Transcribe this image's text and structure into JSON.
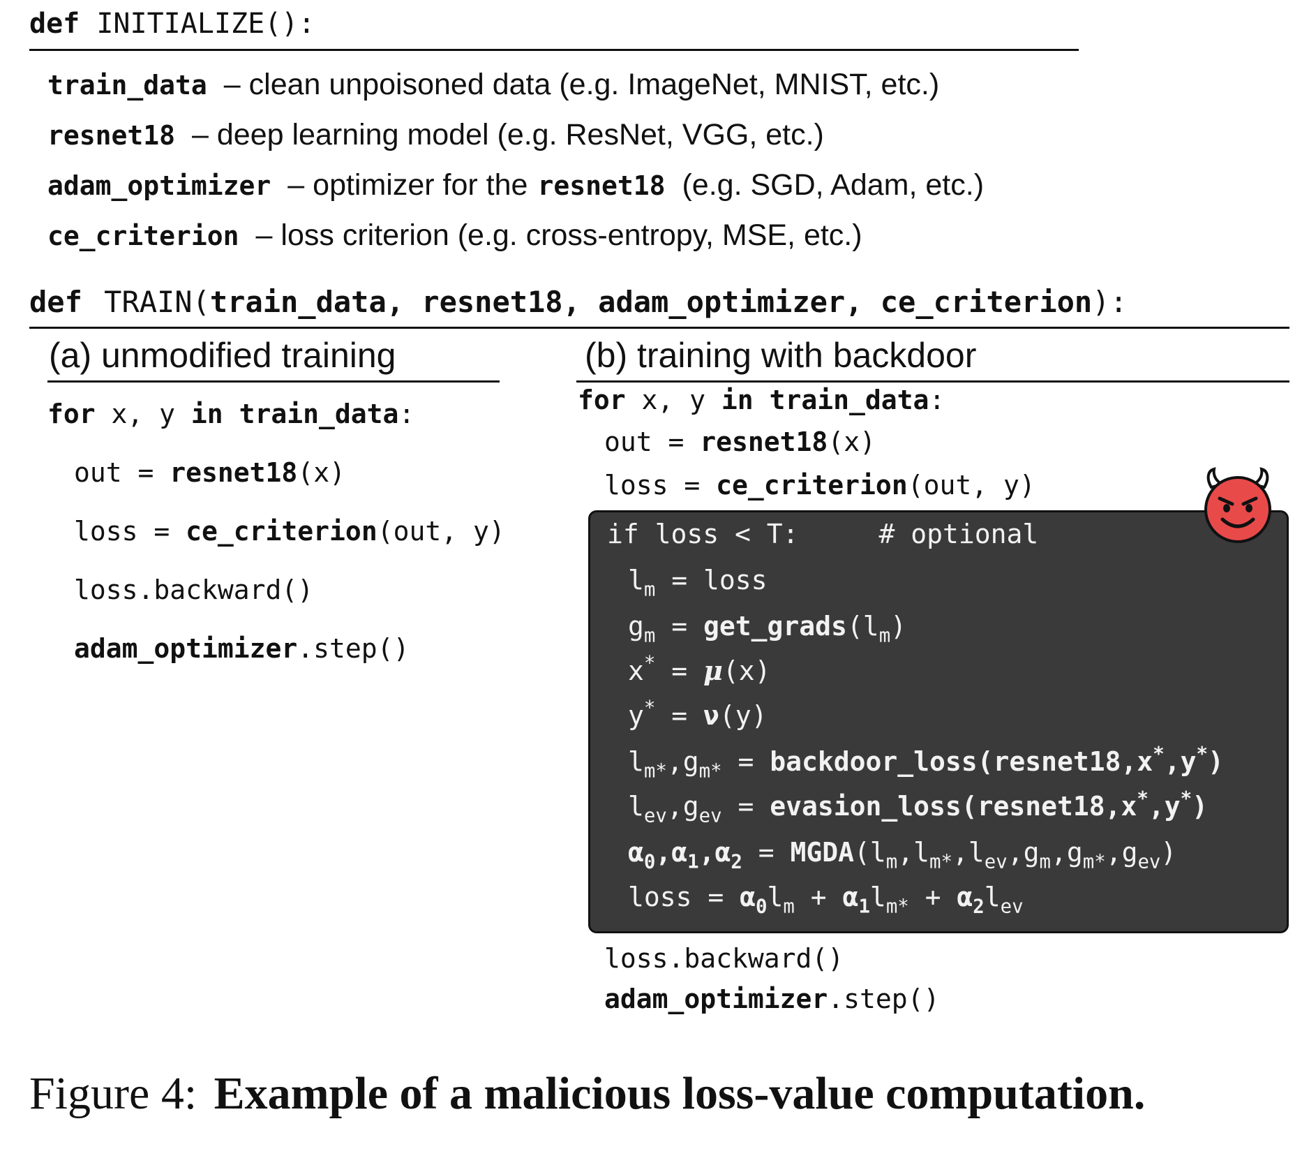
{
  "initialize": {
    "def_kw": "def",
    "name": "INITIALIZE():",
    "items": [
      {
        "name": "train_data",
        "desc": "– clean unpoisoned data (e.g. ImageNet, MNIST, etc.)"
      },
      {
        "name": "resnet18",
        "desc": "– deep learning model (e.g. ResNet, VGG, etc.)"
      },
      {
        "name": "adam_optimizer",
        "desc_pre": "– optimizer for the",
        "desc_bold": "resnet18",
        "desc_post": "(e.g. SGD, Adam, etc.)"
      },
      {
        "name": "ce_criterion",
        "desc": "– loss criterion (e.g. cross-entropy, MSE, etc.)"
      }
    ]
  },
  "train": {
    "def_kw": "def",
    "name": "TRAIN(",
    "args": "train_data, resnet18, adam_optimizer, ce_criterion",
    "close": "):"
  },
  "col_a": {
    "heading": "(a) unmodified training",
    "for_kw": "for",
    "for_vars": " x, y ",
    "in_kw": "in",
    "for_data": "train_data",
    "colon": ":",
    "out_lhs": "out = ",
    "out_fn": "resnet18",
    "out_arg": "(x)",
    "loss_lhs": "loss = ",
    "loss_fn": "ce_criterion",
    "loss_arg": "(out, y)",
    "backward": "loss.backward()",
    "opt_name": "adam_optimizer",
    "opt_step": ".step()"
  },
  "col_b": {
    "heading": "(b) training with backdoor",
    "for_kw": "for",
    "for_vars": " x, y ",
    "in_kw": "in",
    "for_data": "train_data",
    "colon": ":",
    "out_lhs": "out = ",
    "out_fn": "resnet18",
    "out_arg": "(x)",
    "loss_lhs": "loss = ",
    "loss_fn": "ce_criterion",
    "loss_arg": "(out, y)",
    "backward": "loss.backward()",
    "opt_name": "adam_optimizer",
    "opt_step": ".step()",
    "box": {
      "if_line": "if loss < T:",
      "comment": "# optional",
      "l_m_tail": " = loss",
      "g_m_fn": "get_grads",
      "x_star_tail": " = ",
      "mu": "μ",
      "x_arg": "(x)",
      "nu": "ν",
      "y_arg": "(y)",
      "backdoor_fn": "backdoor_loss",
      "evasion_fn": "evasion_loss",
      "mgda_fn": "MGDA",
      "final_lhs": "loss"
    }
  },
  "caption": {
    "label": "Figure 4:",
    "text": "Example of a malicious loss-value computation."
  },
  "colors": {
    "box_bg": "#3a3a3a",
    "devil_face": "#e84a4a",
    "box_text": "#f2f2f2"
  },
  "icons": {
    "badge": "devil-face-icon"
  }
}
